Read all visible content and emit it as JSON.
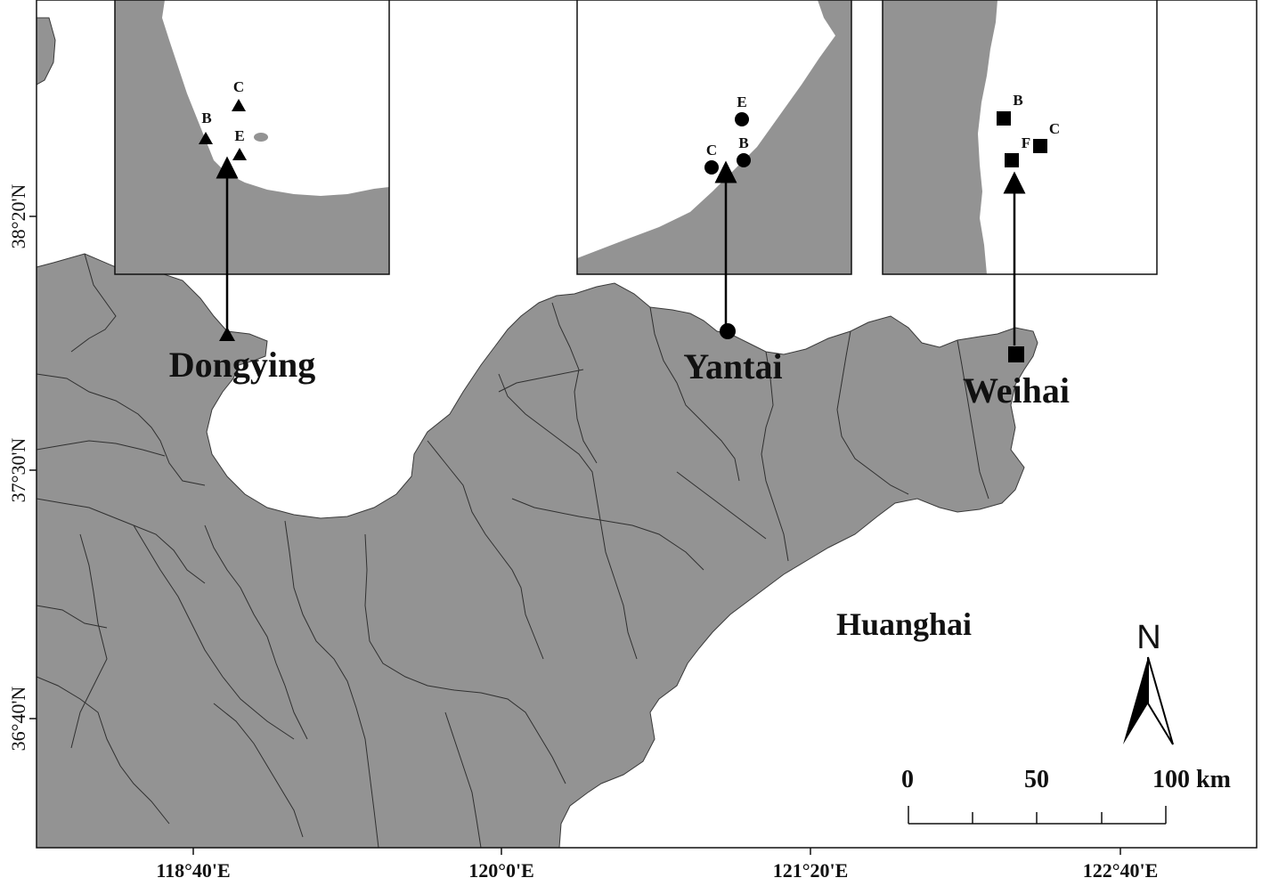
{
  "map": {
    "lat_labels": [
      "38°20'N",
      "37°30'N",
      "36°40'N"
    ],
    "lon_labels": [
      "118°40'E",
      "120°0'E",
      "121°20'E",
      "122°40'E"
    ],
    "sea_label": "Huanghai",
    "north_label": "N"
  },
  "cities": [
    {
      "name": "Dongying",
      "marker": "triangle"
    },
    {
      "name": "Yantai",
      "marker": "circle"
    },
    {
      "name": "Weihai",
      "marker": "square"
    }
  ],
  "insets": [
    {
      "city": "Dongying",
      "marker": "triangle",
      "sites": [
        "B",
        "C",
        "E"
      ]
    },
    {
      "city": "Yantai",
      "marker": "circle",
      "sites": [
        "B",
        "C",
        "E"
      ]
    },
    {
      "city": "Weihai",
      "marker": "square",
      "sites": [
        "B",
        "C",
        "F"
      ]
    }
  ],
  "scale_bar": {
    "labels": [
      "0",
      "50",
      "100 km"
    ]
  },
  "colors": {
    "land": "#939393",
    "sea": "#ffffff",
    "marker": "#000000"
  }
}
